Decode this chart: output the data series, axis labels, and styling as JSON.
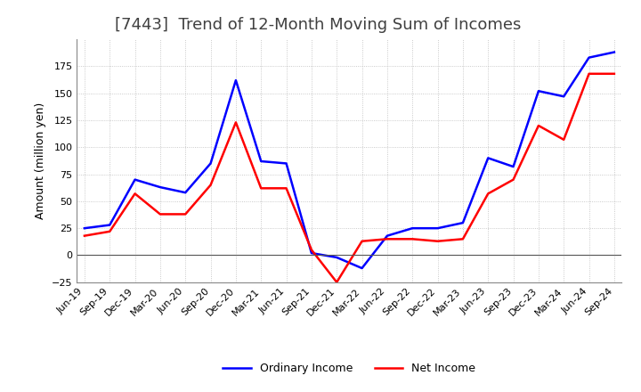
{
  "title": "[7443]  Trend of 12-Month Moving Sum of Incomes",
  "ylabel": "Amount (million yen)",
  "x_labels": [
    "Jun-19",
    "Sep-19",
    "Dec-19",
    "Mar-20",
    "Jun-20",
    "Sep-20",
    "Dec-20",
    "Mar-21",
    "Jun-21",
    "Sep-21",
    "Dec-21",
    "Mar-22",
    "Jun-22",
    "Sep-22",
    "Dec-22",
    "Mar-23",
    "Jun-23",
    "Sep-23",
    "Dec-23",
    "Mar-24",
    "Jun-24",
    "Sep-24"
  ],
  "ordinary_income": [
    25,
    28,
    70,
    63,
    58,
    85,
    162,
    87,
    85,
    2,
    -2,
    -12,
    18,
    25,
    25,
    30,
    90,
    82,
    152,
    147,
    183,
    188
  ],
  "net_income": [
    18,
    22,
    57,
    38,
    38,
    65,
    123,
    62,
    62,
    5,
    -25,
    13,
    15,
    15,
    13,
    15,
    57,
    70,
    120,
    107,
    168,
    168
  ],
  "ordinary_color": "#0000ff",
  "net_color": "#ff0000",
  "ylim": [
    -25,
    200
  ],
  "yticks": [
    -25,
    0,
    25,
    50,
    75,
    100,
    125,
    150,
    175
  ],
  "background_color": "#ffffff",
  "grid_color": "#aaaaaa",
  "title_fontsize": 13,
  "title_color": "#404040",
  "legend_labels": [
    "Ordinary Income",
    "Net Income"
  ]
}
